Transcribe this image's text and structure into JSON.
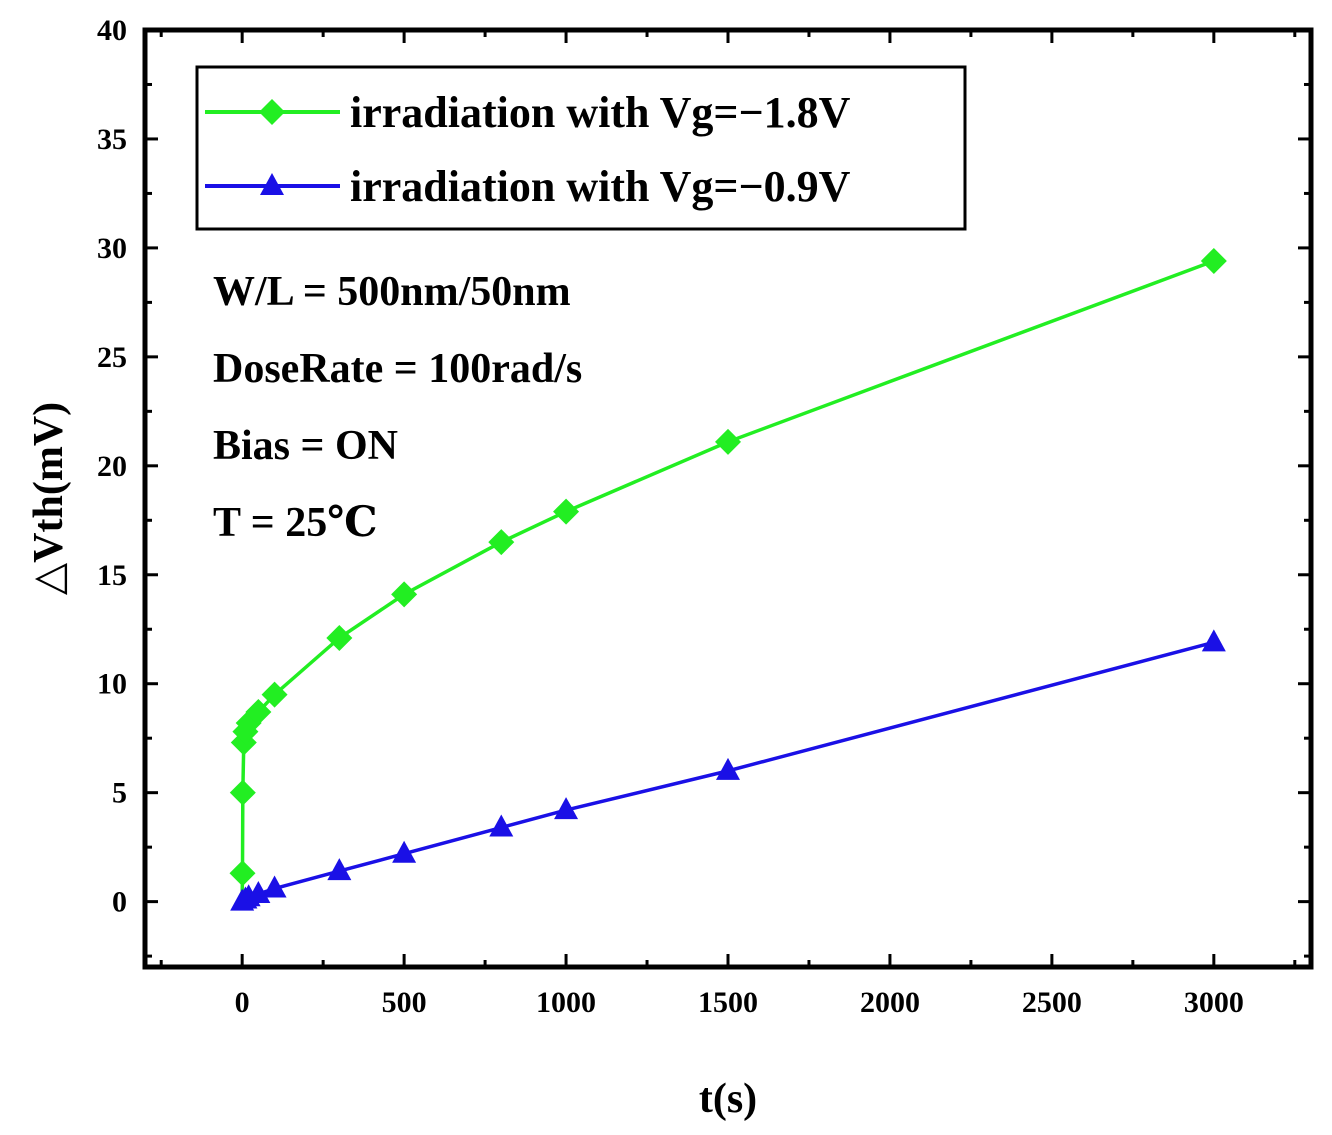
{
  "chart_data": {
    "type": "line",
    "title": "",
    "xlabel": "t(s)",
    "ylabel": "△Vth(mV)",
    "xlim": [
      -300,
      3300
    ],
    "ylim": [
      -3,
      40
    ],
    "xticks": [
      0,
      500,
      1000,
      1500,
      2000,
      2500,
      3000
    ],
    "xtick_labels": [
      "0",
      "500",
      "1000",
      "1500",
      "2000",
      "2500",
      "3000"
    ],
    "yticks": [
      0,
      5,
      10,
      15,
      20,
      25,
      30,
      35,
      40
    ],
    "ytick_labels": [
      "0",
      "5",
      "10",
      "15",
      "20",
      "25",
      "30",
      "35",
      "40"
    ],
    "grid": false,
    "legend_position": "top-left",
    "series": [
      {
        "name": "irradiation with Vg=−1.8V",
        "color": "#22ee22",
        "marker": "diamond",
        "x": [
          0,
          1,
          2,
          5,
          10,
          20,
          50,
          100,
          300,
          500,
          800,
          1000,
          1500,
          3000
        ],
        "y": [
          0.3,
          1.3,
          5.0,
          7.3,
          7.8,
          8.2,
          8.7,
          9.5,
          12.1,
          14.1,
          16.5,
          17.9,
          21.1,
          29.4
        ]
      },
      {
        "name": "irradiation with Vg=−0.9V",
        "color": "#1a10e6",
        "marker": "triangle",
        "x": [
          0,
          10,
          20,
          50,
          100,
          300,
          500,
          800,
          1000,
          1500,
          3000
        ],
        "y": [
          0.0,
          0.1,
          0.2,
          0.35,
          0.6,
          1.4,
          2.2,
          3.4,
          4.2,
          6.0,
          11.9
        ]
      }
    ],
    "annotations": [
      "W/L = 500nm/50nm",
      "DoseRate = 100rad/s",
      "Bias = ON",
      "T = 25℃"
    ]
  }
}
